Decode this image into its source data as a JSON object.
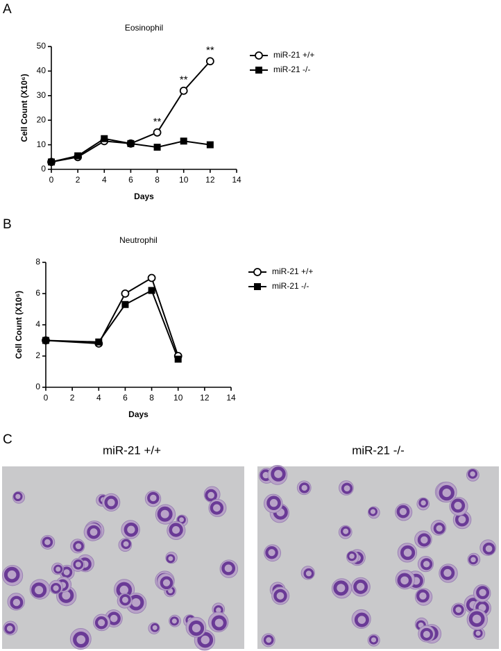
{
  "panels": [
    "A",
    "B",
    "C"
  ],
  "images": [
    {
      "label": "miR-21 +/+"
    },
    {
      "label": "miR-21 -/-"
    }
  ],
  "chart_data": [
    {
      "type": "line",
      "title": "Eosinophil",
      "x_label": "Days",
      "y_label": "Cell Count (X10⁶)",
      "x": [
        0,
        2,
        4,
        6,
        8,
        10,
        12
      ],
      "series": [
        {
          "name": "miR-21 +/+",
          "color": "#000000",
          "marker": "circle-open",
          "values": [
            3,
            5,
            11.5,
            10.5,
            15,
            32,
            44
          ]
        },
        {
          "name": "miR-21 -/-",
          "color": "#000000",
          "marker": "square-filled",
          "values": [
            3,
            5.5,
            12.5,
            10.5,
            9,
            11.5,
            10
          ]
        }
      ],
      "annotations": [
        {
          "text": "**",
          "x": 8
        },
        {
          "text": "**",
          "x": 10
        },
        {
          "text": "**",
          "x": 12
        }
      ],
      "xlim": [
        0,
        14
      ],
      "xticks": [
        0,
        2,
        4,
        6,
        8,
        10,
        12,
        14
      ],
      "ylim": [
        0,
        50
      ],
      "yticks": [
        0,
        10,
        20,
        30,
        40,
        50
      ],
      "legend": "right"
    },
    {
      "type": "line",
      "title": "Neutrophil",
      "x_label": "Days",
      "y_label": "Cell Count (X10⁶)",
      "x": [
        0,
        4,
        6,
        8,
        10
      ],
      "series": [
        {
          "name": "miR-21 +/+",
          "color": "#000000",
          "marker": "circle-open",
          "values": [
            3,
            2.8,
            6,
            7,
            2
          ]
        },
        {
          "name": "miR-21 -/-",
          "color": "#000000",
          "marker": "square-filled",
          "values": [
            3,
            2.9,
            5.3,
            6.2,
            1.8
          ]
        }
      ],
      "xlim": [
        0,
        14
      ],
      "xticks": [
        0,
        2,
        4,
        6,
        8,
        10,
        12,
        14
      ],
      "ylim": [
        0,
        8
      ],
      "yticks": [
        0,
        2,
        4,
        6,
        8
      ],
      "legend": "right"
    }
  ]
}
